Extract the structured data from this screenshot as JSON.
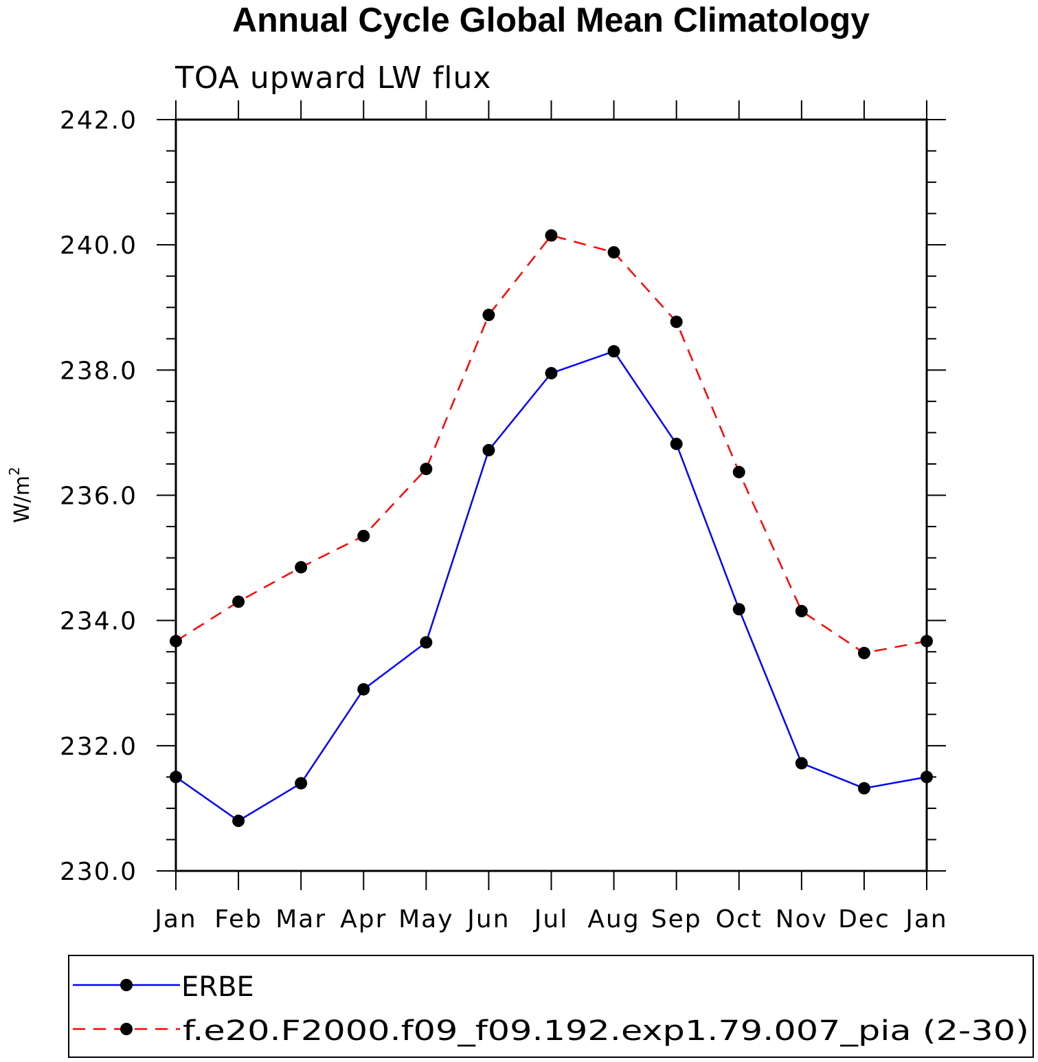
{
  "chart_data": {
    "type": "line",
    "title": "Annual Cycle Global Mean Climatology",
    "subtitle": "TOA upward LW flux",
    "xlabel": "",
    "ylabel": "W/m",
    "ylabel_superscript": "2",
    "categories": [
      "Jan",
      "Feb",
      "Mar",
      "Apr",
      "May",
      "Jun",
      "Jul",
      "Aug",
      "Sep",
      "Oct",
      "Nov",
      "Dec",
      "Jan"
    ],
    "ylim": [
      230.0,
      242.0
    ],
    "yticks": [
      "230.0",
      "232.0",
      "234.0",
      "236.0",
      "238.0",
      "240.0",
      "242.0"
    ],
    "grid": false,
    "legend_position": "bottom",
    "series": [
      {
        "name": "ERBE",
        "color": "#0000ff",
        "line_style": "solid",
        "marker": "filled-circle",
        "values": [
          231.5,
          230.8,
          231.4,
          232.9,
          233.65,
          236.72,
          237.95,
          238.3,
          236.82,
          234.18,
          231.72,
          231.32,
          231.5
        ]
      },
      {
        "name": "f.e20.F2000.f09_f09.192.exp1.79.007_pia (2-30)",
        "color": "#ff0000",
        "line_style": "dashed",
        "marker": "filled-circle",
        "values": [
          233.67,
          234.3,
          234.85,
          235.35,
          236.42,
          238.88,
          240.15,
          239.88,
          238.77,
          236.37,
          234.15,
          233.48,
          233.67
        ]
      }
    ]
  }
}
